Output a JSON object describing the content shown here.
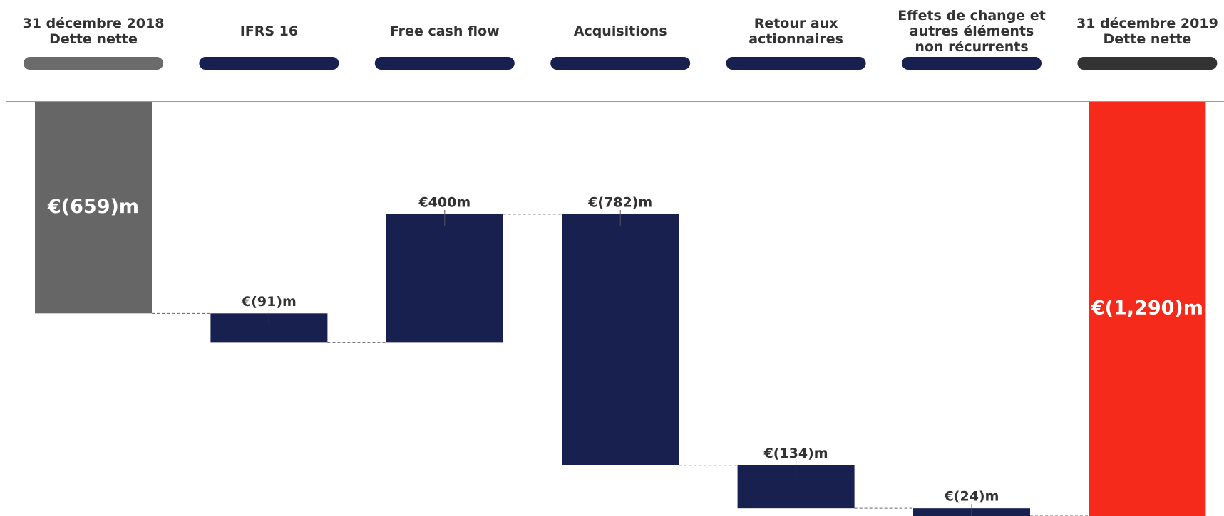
{
  "chart_data": {
    "type": "waterfall",
    "categories": [
      "31 décembre 2018\nDette nette",
      "IFRS 16",
      "Free cash flow",
      "Acquisitions",
      "Retour aux\nactionnaires",
      "Effets de change et\nautres éléments\nnon récurrents",
      "31 décembre 2019\nDette nette"
    ],
    "values": [
      -659,
      -91,
      400,
      -782,
      -134,
      -24,
      -1290
    ],
    "value_labels": [
      "€(659)m",
      "€(91)m",
      "€400m",
      "€(782)m",
      "€(134)m",
      "€(24)m",
      "€(1,290)m"
    ],
    "colors": [
      "#666666",
      "#18204f",
      "#18204f",
      "#18204f",
      "#18204f",
      "#18204f",
      "#f52a1a"
    ]
  }
}
